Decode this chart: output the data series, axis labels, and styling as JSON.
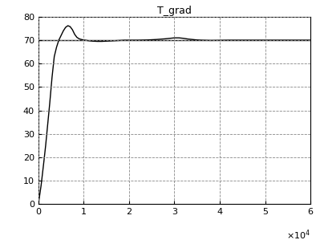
{
  "title": "T_grad",
  "xlim": [
    0,
    60000
  ],
  "ylim": [
    0,
    80
  ],
  "yticks": [
    0,
    10,
    20,
    30,
    40,
    50,
    60,
    70,
    80
  ],
  "xticks": [
    0,
    10000,
    20000,
    30000,
    40000,
    50000,
    60000
  ],
  "hline_y": 70,
  "curve_color": "#000000",
  "hline_color": "#000000",
  "background_color": "#ffffff",
  "grid_color": "#888888",
  "grid_linestyle": "--",
  "curve_x": [
    0,
    300,
    600,
    900,
    1200,
    1600,
    2000,
    2500,
    3000,
    3500,
    4000,
    4500,
    5000,
    5500,
    6000,
    6500,
    7000,
    7500,
    8000,
    8500,
    9000,
    9500,
    10000,
    11000,
    12000,
    13000,
    14000,
    15000,
    16000,
    17000,
    18000,
    19000,
    20000,
    22000,
    24000,
    26000,
    28000,
    29000,
    30000,
    31000,
    32000,
    33000,
    34000,
    35000,
    36000,
    38000,
    40000,
    42000,
    45000,
    50000,
    55000,
    60000
  ],
  "curve_y": [
    0,
    4,
    8,
    13,
    18,
    25,
    33,
    43,
    54,
    63,
    67,
    70,
    72,
    74,
    75.5,
    76.2,
    75.8,
    74.5,
    72.5,
    71.2,
    70.6,
    70.3,
    70.1,
    69.8,
    69.6,
    69.5,
    69.5,
    69.6,
    69.7,
    69.8,
    69.9,
    70.0,
    70.0,
    70.0,
    70.1,
    70.3,
    70.6,
    70.8,
    71.0,
    71.0,
    70.8,
    70.5,
    70.3,
    70.1,
    70.0,
    69.9,
    69.95,
    70.0,
    70.0,
    70.0,
    70.0,
    70.0
  ],
  "figsize": [
    3.99,
    2.99
  ],
  "dpi": 100
}
